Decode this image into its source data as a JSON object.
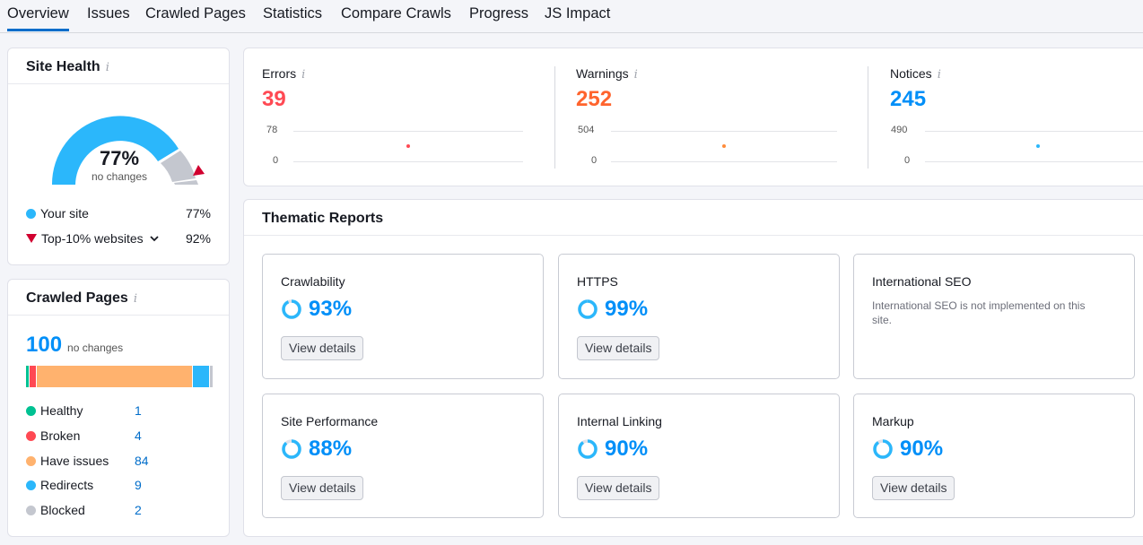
{
  "tabs": [
    "Overview",
    "Issues",
    "Crawled Pages",
    "Statistics",
    "Compare Crawls",
    "Progress",
    "JS Impact"
  ],
  "site_health": {
    "title": "Site Health",
    "info": "i",
    "percent": "77%",
    "percent_fraction": 0.77,
    "sub": "no changes",
    "legend": [
      {
        "label": "Your site",
        "value": "77%",
        "color": "#2bb7fb"
      },
      {
        "label": "Top-10% websites",
        "value": "92%",
        "color": "#d1002f"
      }
    ]
  },
  "crawled_pages": {
    "title": "Crawled Pages",
    "info": "i",
    "total": "100",
    "sub": "no changes",
    "rows": [
      {
        "label": "Healthy",
        "value": "1",
        "color": "#00c192",
        "fraction": 0.01
      },
      {
        "label": "Broken",
        "value": "4",
        "color": "#ff4953",
        "fraction": 0.04
      },
      {
        "label": "Have issues",
        "value": "84",
        "color": "#ffb26e",
        "fraction": 0.84
      },
      {
        "label": "Redirects",
        "value": "9",
        "color": "#2bb7fb",
        "fraction": 0.09
      },
      {
        "label": "Blocked",
        "value": "2",
        "color": "#c4c7cf",
        "fraction": 0.02
      }
    ]
  },
  "issues": [
    {
      "label": "Errors",
      "value": "39",
      "color": "#ff4953",
      "axis_max": "78",
      "axis_min": "0"
    },
    {
      "label": "Warnings",
      "value": "252",
      "color": "#ff642d",
      "axis_max": "504",
      "axis_min": "0"
    },
    {
      "label": "Notices",
      "value": "245",
      "color": "#008ff8",
      "axis_max": "490",
      "axis_min": "0"
    }
  ],
  "issues_info": "i",
  "thematic": {
    "title": "Thematic Reports",
    "reports": [
      {
        "name": "Crawlability",
        "score": "93%",
        "fraction": 0.93,
        "button": "View details"
      },
      {
        "name": "HTTPS",
        "score": "99%",
        "fraction": 0.99,
        "button": "View details"
      },
      {
        "name": "International SEO",
        "note": "International SEO is not implemented on this site."
      },
      {
        "name": "Site Performance",
        "score": "88%",
        "fraction": 0.88,
        "button": "View details"
      },
      {
        "name": "Internal Linking",
        "score": "90%",
        "fraction": 0.9,
        "button": "View details"
      },
      {
        "name": "Markup",
        "score": "90%",
        "fraction": 0.9,
        "button": "View details"
      }
    ]
  }
}
